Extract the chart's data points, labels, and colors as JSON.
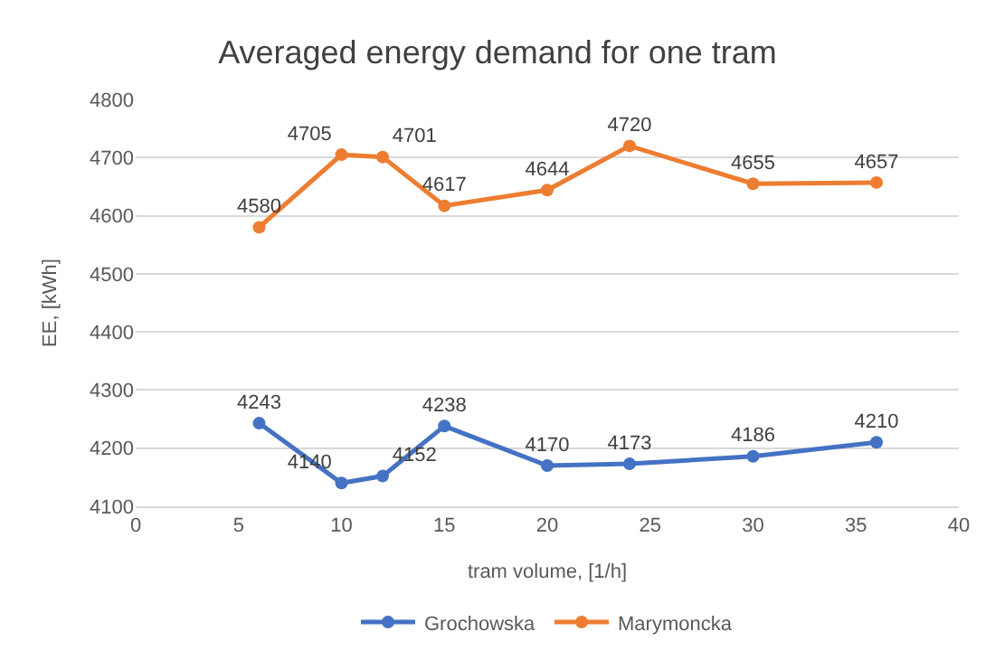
{
  "chart_data": {
    "type": "line",
    "title": "Averaged energy demand for one tram",
    "xlabel": "tram volume, [1/h]",
    "ylabel": "EE, [kWh]",
    "x": [
      6,
      10,
      12,
      15,
      20,
      24,
      30,
      36
    ],
    "series": [
      {
        "name": "Grochowska",
        "color": "#4472c4",
        "values": [
          4243,
          4140,
          4152,
          4238,
          4170,
          4173,
          4186,
          4210
        ]
      },
      {
        "name": "Marymoncka",
        "color": "#ed7d31",
        "values": [
          4580,
          4705,
          4701,
          4617,
          4644,
          4720,
          4655,
          4657
        ]
      }
    ],
    "xlim": [
      0,
      40
    ],
    "xticks": [
      0,
      5,
      10,
      15,
      20,
      25,
      30,
      35,
      40
    ],
    "ylim": [
      4100,
      4800
    ],
    "yticks": [
      4100,
      4200,
      4300,
      4400,
      4500,
      4600,
      4700,
      4800
    ],
    "grid": "y",
    "legend": "bottom",
    "marker": "circle",
    "line_style": "solid",
    "data_labels": true
  }
}
